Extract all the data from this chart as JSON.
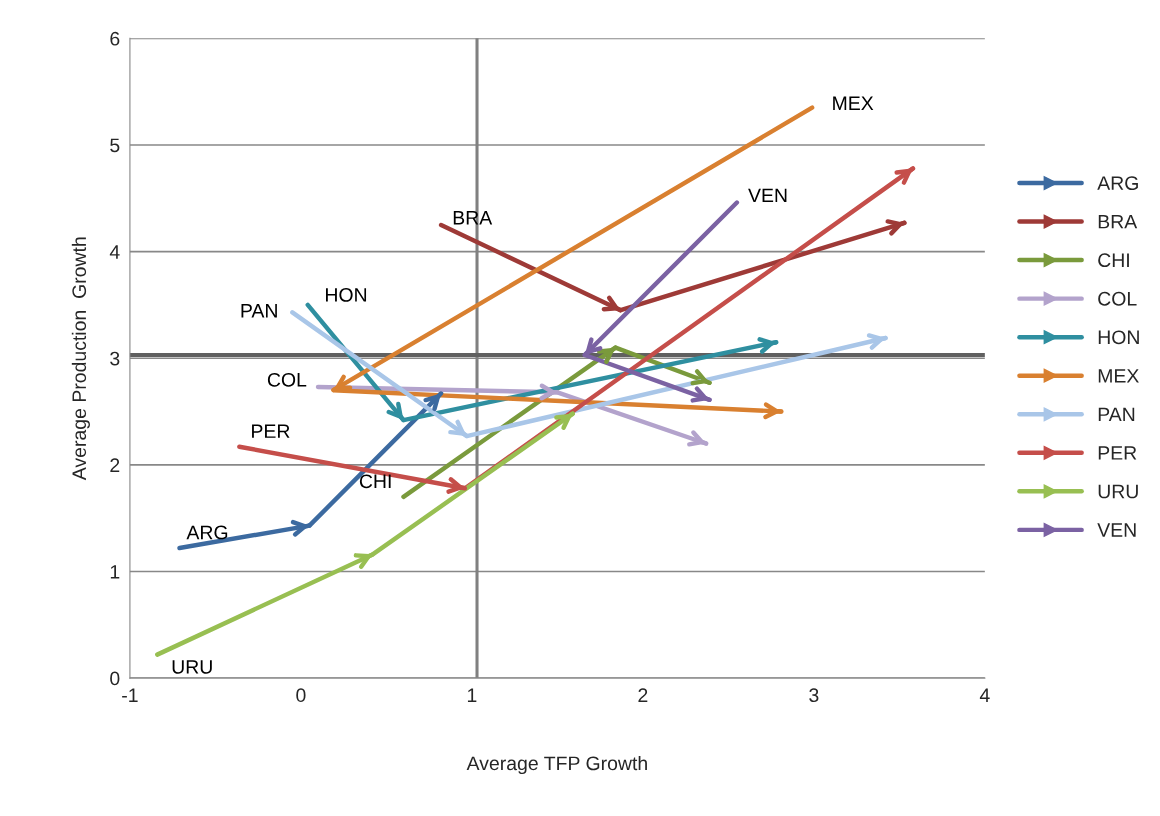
{
  "chart_data": {
    "type": "line",
    "xlabel": "Average TFP Growth",
    "ylabel": "Average Production  Growth",
    "xlim": [
      -1,
      4
    ],
    "xticks": [
      -1,
      0,
      1,
      2,
      3,
      4
    ],
    "ylim": [
      0,
      6
    ],
    "yticks": [
      0,
      1,
      2,
      3,
      4,
      5,
      6
    ],
    "grid": "y",
    "legend": "right",
    "ref_lines": [
      {
        "axis": "x",
        "value": 1.03,
        "color": "#808080"
      },
      {
        "axis": "y",
        "value": 3.03,
        "color": "#606060"
      }
    ],
    "series": [
      {
        "name": "ARG",
        "color": "#3c6aa0",
        "x": [
          -0.71,
          0.05,
          0.82
        ],
        "values": [
          1.22,
          1.43,
          2.67
        ]
      },
      {
        "name": "BRA",
        "color": "#9e3a37",
        "x": [
          0.82,
          1.87,
          3.53
        ],
        "values": [
          4.25,
          3.45,
          4.27
        ]
      },
      {
        "name": "CHI",
        "color": "#7a9a3c",
        "x": [
          0.6,
          1.84,
          2.39
        ],
        "values": [
          1.7,
          3.1,
          2.77
        ]
      },
      {
        "name": "COL",
        "color": "#b3a3cc",
        "x": [
          0.1,
          1.5,
          2.37
        ],
        "values": [
          2.73,
          2.68,
          2.2
        ]
      },
      {
        "name": "HON",
        "color": "#2f8fa0",
        "x": [
          0.04,
          0.6,
          2.78
        ],
        "values": [
          3.5,
          2.42,
          3.15
        ]
      },
      {
        "name": "MEX",
        "color": "#d98030",
        "x": [
          2.99,
          0.19,
          2.81
        ],
        "values": [
          5.35,
          2.7,
          2.5
        ]
      },
      {
        "name": "PAN",
        "color": "#a9c6e8",
        "x": [
          -0.05,
          0.97,
          3.42
        ],
        "values": [
          3.43,
          2.27,
          3.19
        ]
      },
      {
        "name": "PER",
        "color": "#c54e4a",
        "x": [
          -0.36,
          0.96,
          3.58
        ],
        "values": [
          2.17,
          1.78,
          4.78
        ]
      },
      {
        "name": "URU",
        "color": "#98bf52",
        "x": [
          -0.84,
          0.42,
          1.59
        ],
        "values": [
          0.22,
          1.16,
          2.48
        ]
      },
      {
        "name": "VEN",
        "color": "#7b62a3",
        "x": [
          2.55,
          1.66,
          2.39
        ],
        "values": [
          4.46,
          3.03,
          2.61
        ]
      }
    ]
  }
}
